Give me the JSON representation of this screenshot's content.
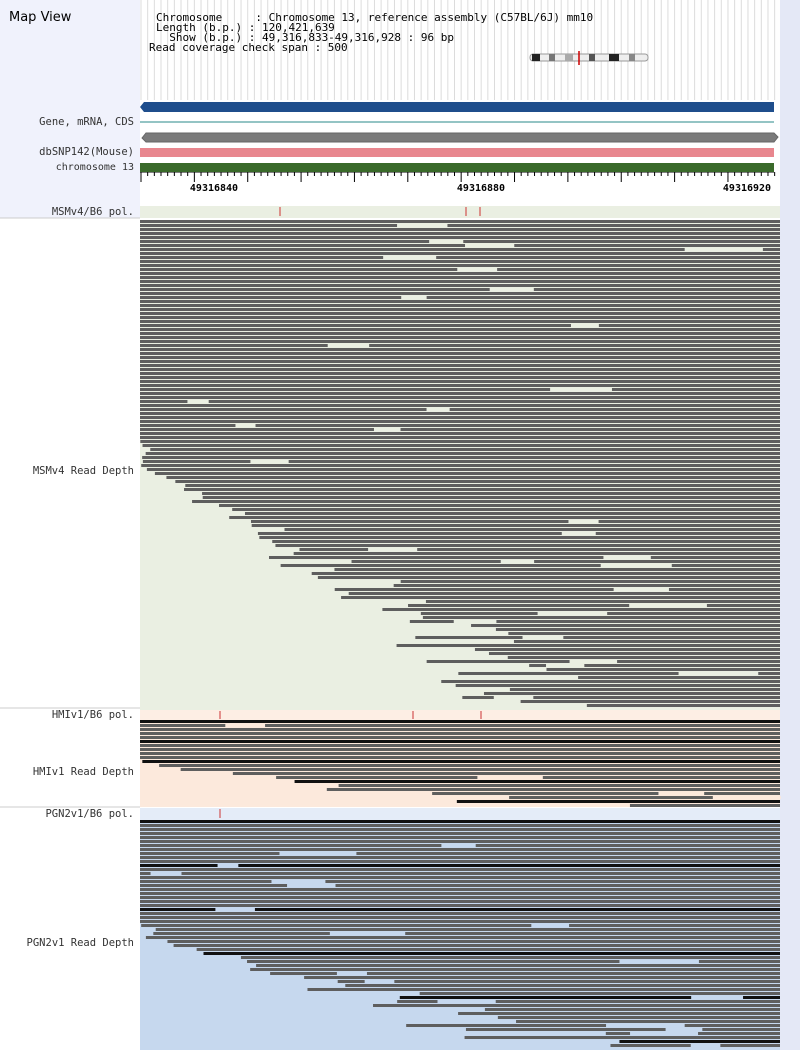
{
  "header": {
    "title": "Map View",
    "chromosome_line": "Chromosome     : Chromosome 13, reference assembly (C57BL/6J) mm10",
    "length_line": "Length (b.p.) : 120,421,639",
    "show_line": "  Show (b.p.) : 49,316,833-49,316,928 : 96 bp",
    "coverage_line": "Read coverage check span : 500"
  },
  "tracks": {
    "gene_label": "Gene, mRNA, CDS",
    "dbsnp_label": "dbSNP142(Mouse)",
    "chrom_label": "chromosome 13"
  },
  "ruler": {
    "labels": [
      "49316840",
      "49316880",
      "49316920"
    ]
  },
  "panels": [
    {
      "pol_label": "MSMv4/B6 pol.",
      "depth_label": "MSMv4 Read Depth"
    },
    {
      "pol_label": "HMIv1/B6 pol.",
      "depth_label": "HMIv1 Read Depth"
    },
    {
      "pol_label": "PGN2v1/B6 pol.",
      "depth_label": "PGN2v1 Read Depth"
    }
  ],
  "colors": {
    "gene_bar": "#1f4e8c",
    "snp_bar": "#e8868e",
    "chrom_bar": "#3a6a2a",
    "read_gray": "#5e5e5e",
    "msm_bg": "#eaefe2",
    "hmi_bg": "#fce9dc",
    "pgn_bg": "#c6d8ee"
  }
}
